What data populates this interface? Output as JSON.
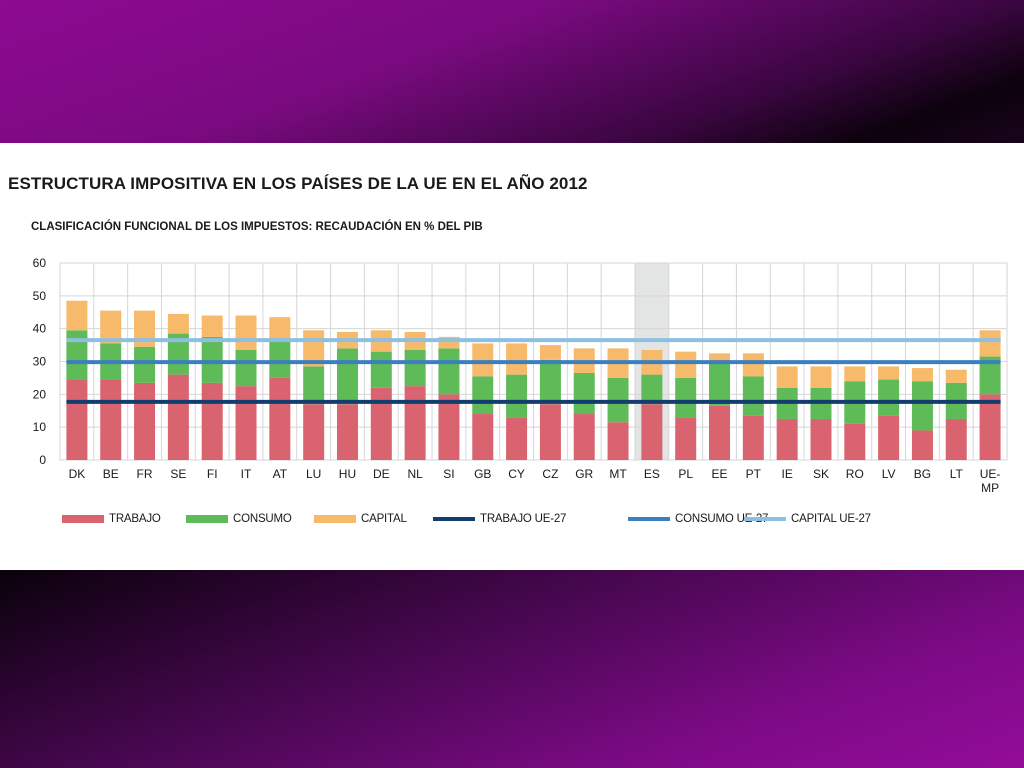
{
  "slide": {
    "title": "ESTRUCTURA IMPOSITIVA EN LOS PAÍSES DE LA UE EN EL AÑO 2012"
  },
  "chart_data": {
    "type": "bar",
    "stacked": true,
    "title": "CLASIFICACIÓN FUNCIONAL DE LOS IMPUESTOS: RECAUDACIÓN EN % DEL PIB",
    "xlabel": "",
    "ylabel": "",
    "ylim": [
      0,
      60
    ],
    "yticks": [
      0,
      10,
      20,
      30,
      40,
      50,
      60
    ],
    "grid": true,
    "highlighted_category": "ES",
    "categories": [
      "DK",
      "BE",
      "FR",
      "SE",
      "FI",
      "IT",
      "AT",
      "LU",
      "HU",
      "DE",
      "NL",
      "SI",
      "GB",
      "CY",
      "CZ",
      "GR",
      "MT",
      "ES",
      "PL",
      "EE",
      "PT",
      "IE",
      "SK",
      "RO",
      "LV",
      "BG",
      "LT",
      "UE-\nMP"
    ],
    "series": [
      {
        "name": "TRABAJO",
        "color": "#d9646f",
        "values": [
          24.5,
          24.5,
          23.5,
          26,
          23.5,
          22.5,
          25,
          17,
          17,
          22,
          22.5,
          20,
          14,
          13,
          17,
          14,
          11.5,
          17,
          13,
          16.5,
          13.5,
          12.5,
          12.5,
          11,
          13.5,
          9,
          12.5,
          20
        ]
      },
      {
        "name": "CONSUMO",
        "color": "#5fba58",
        "values": [
          15,
          11,
          11,
          12.5,
          14,
          11,
          11.5,
          11.5,
          17,
          11,
          11,
          14,
          11.5,
          13,
          13.5,
          12.5,
          13.5,
          9,
          12,
          13.5,
          12,
          9.5,
          9.5,
          13,
          11,
          15,
          11,
          11.5
        ]
      },
      {
        "name": "CAPITAL",
        "color": "#f7b96a",
        "values": [
          9,
          10,
          11,
          6,
          6.5,
          10.5,
          7,
          11,
          5,
          6.5,
          5.5,
          3.5,
          10,
          9.5,
          4.5,
          7.5,
          9,
          7.5,
          8,
          2.5,
          7,
          6.5,
          6.5,
          4.5,
          4,
          4,
          4,
          8
        ]
      }
    ],
    "reference_lines": [
      {
        "name": "TRABAJO UE-27",
        "color": "#123d6e",
        "value": 17.7
      },
      {
        "name": "CONSUMO UE-27",
        "color": "#3c7fbf",
        "value": 29.8
      },
      {
        "name": "CAPITAL UE-27",
        "color": "#8cbfe0",
        "value": 36.5
      }
    ],
    "legend_position": "bottom"
  }
}
